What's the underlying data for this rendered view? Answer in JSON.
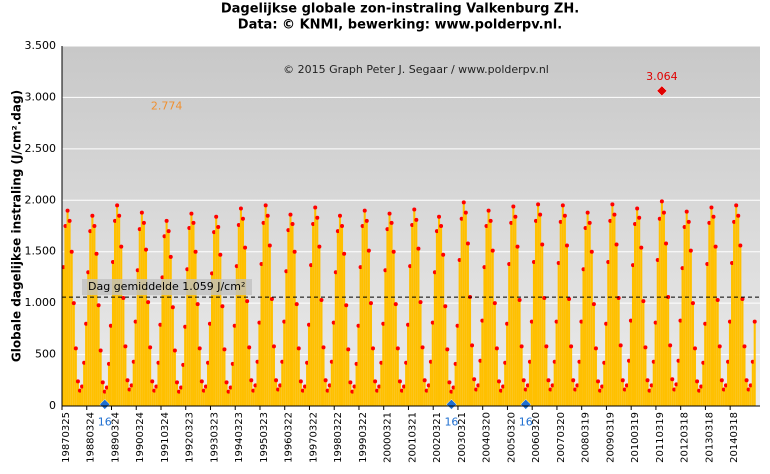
{
  "chart_data": {
    "type": "bar",
    "title": "Dagelijkse globale zon-instraling Valkenburg ZH.",
    "subtitle": "Data: © KNMI, bewerking: www.polderpv.nl.",
    "copyright": "© 2015 Graph Peter J. Segaar / www.polderpv.nl",
    "y_label": "Globale dagelijkse instraling (J/cm².dag)",
    "color": "#ffc000",
    "marker_color": "#ff0000",
    "grid": true,
    "xlim": [
      "19870325",
      "20150601"
    ],
    "xticks": [
      "19870325",
      "19880324",
      "19890324",
      "19900324",
      "19910324",
      "19920323",
      "19930323",
      "19940323",
      "19950323",
      "19960322",
      "19970322",
      "19980322",
      "19990322",
      "20000321",
      "20010321",
      "20020321",
      "20030321",
      "20040320",
      "20050320",
      "20060320",
      "20070320",
      "20080319",
      "20090319",
      "20100319",
      "20110319",
      "20120318",
      "20130318",
      "20140318"
    ],
    "ylim": [
      0,
      3500
    ],
    "yticks": [
      0,
      500,
      {
        "value": 1000,
        "label": "1.000"
      },
      {
        "value": 1500,
        "label": "1.500"
      },
      {
        "value": 2000,
        "label": "2.000"
      },
      {
        "value": 2500,
        "label": "2.500"
      },
      {
        "value": 3000,
        "label": "3.000"
      },
      {
        "value": 3500,
        "label": "3.500"
      }
    ],
    "mean_line": {
      "value": 1059,
      "label": "Dag gemiddelde 1.059 J/cm²"
    },
    "annotations": [
      {
        "x": "20110615",
        "value": 3064,
        "label": "3.064",
        "color": "#e00000",
        "marker": "diamond"
      },
      {
        "x": "19910615",
        "value": 2774,
        "label": "2.774",
        "color": "#f09030",
        "marker": "none"
      },
      {
        "x": "19881215",
        "value": 16,
        "label": "16",
        "color": "#1f6fd0",
        "marker": "diamond"
      },
      {
        "x": "20021215",
        "value": 16,
        "label": "16",
        "color": "#1f6fd0",
        "marker": "diamond"
      },
      {
        "x": "20051215",
        "value": 16,
        "label": "16",
        "color": "#1f6fd0",
        "marker": "diamond"
      }
    ],
    "x": [
      "19870415",
      "19870515",
      "19870615",
      "19870715",
      "19870815",
      "19870915",
      "19871015",
      "19871115",
      "19871215",
      "19880115",
      "19880215",
      "19880315",
      "19880415",
      "19880515",
      "19880615",
      "19880715",
      "19880815",
      "19880915",
      "19881015",
      "19881115",
      "19881215",
      "19890115",
      "19890215",
      "19890315",
      "19890415",
      "19890515",
      "19890615",
      "19890715",
      "19890815",
      "19890915",
      "19891015",
      "19891115",
      "19891215",
      "19900115",
      "19900215",
      "19900315",
      "19900415",
      "19900515",
      "19900615",
      "19900715",
      "19900815",
      "19900915",
      "19901015",
      "19901115",
      "19901215",
      "19910115",
      "19910215",
      "19910315",
      "19910415",
      "19910515",
      "19910615",
      "19910715",
      "19910815",
      "19910915",
      "19911015",
      "19911115",
      "19911215",
      "19920115",
      "19920215",
      "19920315",
      "19920415",
      "19920515",
      "19920615",
      "19920715",
      "19920815",
      "19920915",
      "19921015",
      "19921115",
      "19921215",
      "19930115",
      "19930215",
      "19930315",
      "19930415",
      "19930515",
      "19930615",
      "19930715",
      "19930815",
      "19930915",
      "19931015",
      "19931115",
      "19931215",
      "19940115",
      "19940215",
      "19940315",
      "19940415",
      "19940515",
      "19940615",
      "19940715",
      "19940815",
      "19940915",
      "19941015",
      "19941115",
      "19941215",
      "19950115",
      "19950215",
      "19950315",
      "19950415",
      "19950515",
      "19950615",
      "19950715",
      "19950815",
      "19950915",
      "19951015",
      "19951115",
      "19951215",
      "19960115",
      "19960215",
      "19960315",
      "19960415",
      "19960515",
      "19960615",
      "19960715",
      "19960815",
      "19960915",
      "19961015",
      "19961115",
      "19961215",
      "19970115",
      "19970215",
      "19970315",
      "19970415",
      "19970515",
      "19970615",
      "19970715",
      "19970815",
      "19970915",
      "19971015",
      "19971115",
      "19971215",
      "19980115",
      "19980215",
      "19980315",
      "19980415",
      "19980515",
      "19980615",
      "19980715",
      "19980815",
      "19980915",
      "19981015",
      "19981115",
      "19981215",
      "19990115",
      "19990215",
      "19990315",
      "19990415",
      "19990515",
      "19990615",
      "19990715",
      "19990815",
      "19990915",
      "19991015",
      "19991115",
      "19991215",
      "20000115",
      "20000215",
      "20000315",
      "20000415",
      "20000515",
      "20000615",
      "20000715",
      "20000815",
      "20000915",
      "20001015",
      "20001115",
      "20001215",
      "20010115",
      "20010215",
      "20010315",
      "20010415",
      "20010515",
      "20010615",
      "20010715",
      "20010815",
      "20010915",
      "20011015",
      "20011115",
      "20011215",
      "20020115",
      "20020215",
      "20020315",
      "20020415",
      "20020515",
      "20020615",
      "20020715",
      "20020815",
      "20020915",
      "20021015",
      "20021115",
      "20021215",
      "20030115",
      "20030215",
      "20030315",
      "20030415",
      "20030515",
      "20030615",
      "20030715",
      "20030815",
      "20030915",
      "20031015",
      "20031115",
      "20031215",
      "20040115",
      "20040215",
      "20040315",
      "20040415",
      "20040515",
      "20040615",
      "20040715",
      "20040815",
      "20040915",
      "20041015",
      "20041115",
      "20041215",
      "20050115",
      "20050215",
      "20050315",
      "20050415",
      "20050515",
      "20050615",
      "20050715",
      "20050815",
      "20050915",
      "20051015",
      "20051115",
      "20051215",
      "20060115",
      "20060215",
      "20060315",
      "20060415",
      "20060515",
      "20060615",
      "20060715",
      "20060815",
      "20060915",
      "20061015",
      "20061115",
      "20061215",
      "20070115",
      "20070215",
      "20070315",
      "20070415",
      "20070515",
      "20070615",
      "20070715",
      "20070815",
      "20070915",
      "20071015",
      "20071115",
      "20071215",
      "20080115",
      "20080215",
      "20080315",
      "20080415",
      "20080515",
      "20080615",
      "20080715",
      "20080815",
      "20080915",
      "20081015",
      "20081115",
      "20081215",
      "20090115",
      "20090215",
      "20090315",
      "20090415",
      "20090515",
      "20090615",
      "20090715",
      "20090815",
      "20090915",
      "20091015",
      "20091115",
      "20091215",
      "20100115",
      "20100215",
      "20100315",
      "20100415",
      "20100515",
      "20100615",
      "20100715",
      "20100815",
      "20100915",
      "20101015",
      "20101115",
      "20101215",
      "20110115",
      "20110215",
      "20110315",
      "20110415",
      "20110515",
      "20110615",
      "20110715",
      "20110815",
      "20110915",
      "20111015",
      "20111115",
      "20111215",
      "20120115",
      "20120215",
      "20120315",
      "20120415",
      "20120515",
      "20120615",
      "20120715",
      "20120815",
      "20120915",
      "20121015",
      "20121115",
      "20121215",
      "20130115",
      "20130215",
      "20130315",
      "20130415",
      "20130515",
      "20130615",
      "20130715",
      "20130815",
      "20130915",
      "20131015",
      "20131115",
      "20131215",
      "20140115",
      "20140215",
      "20140315",
      "20140415",
      "20140515",
      "20140615",
      "20140715",
      "20140815",
      "20140915",
      "20141015",
      "20141115",
      "20141215",
      "20150115",
      "20150215",
      "20150315"
    ],
    "values": [
      1350,
      1750,
      1900,
      1800,
      1500,
      1000,
      560,
      240,
      150,
      190,
      420,
      800,
      1300,
      1700,
      1850,
      1750,
      1480,
      980,
      540,
      230,
      140,
      180,
      410,
      780,
      1400,
      1800,
      1950,
      1850,
      1550,
      1050,
      580,
      250,
      160,
      200,
      430,
      820,
      1320,
      1720,
      1880,
      1780,
      1520,
      1010,
      570,
      240,
      150,
      190,
      420,
      790,
      1250,
      1650,
      1800,
      1700,
      1450,
      960,
      540,
      230,
      140,
      180,
      400,
      770,
      1330,
      1730,
      1870,
      1780,
      1500,
      990,
      560,
      240,
      150,
      190,
      420,
      800,
      1290,
      1690,
      1840,
      1740,
      1470,
      970,
      550,
      230,
      140,
      180,
      410,
      780,
      1360,
      1760,
      1920,
      1820,
      1540,
      1020,
      570,
      250,
      150,
      200,
      430,
      810,
      1380,
      1780,
      1950,
      1850,
      1560,
      1040,
      580,
      250,
      160,
      200,
      430,
      820,
      1310,
      1710,
      1860,
      1770,
      1500,
      990,
      560,
      240,
      150,
      190,
      420,
      790,
      1370,
      1770,
      1930,
      1830,
      1550,
      1030,
      570,
      250,
      150,
      200,
      430,
      810,
      1300,
      1700,
      1850,
      1750,
      1480,
      980,
      550,
      230,
      140,
      190,
      410,
      780,
      1350,
      1750,
      1900,
      1800,
      1510,
      1000,
      560,
      240,
      150,
      190,
      420,
      800,
      1320,
      1720,
      1870,
      1780,
      1500,
      990,
      560,
      240,
      150,
      190,
      420,
      790,
      1360,
      1760,
      1910,
      1810,
      1530,
      1010,
      570,
      250,
      150,
      200,
      430,
      810,
      1300,
      1700,
      1840,
      1750,
      1470,
      970,
      550,
      230,
      140,
      180,
      410,
      780,
      1420,
      1820,
      1980,
      1880,
      1580,
      1060,
      590,
      260,
      160,
      200,
      440,
      830,
      1350,
      1750,
      1900,
      1800,
      1510,
      1000,
      560,
      240,
      150,
      190,
      420,
      800,
      1380,
      1780,
      1940,
      1840,
      1550,
      1030,
      580,
      250,
      160,
      200,
      430,
      820,
      1400,
      1800,
      1960,
      1860,
      1570,
      1050,
      580,
      250,
      160,
      200,
      430,
      820,
      1390,
      1790,
      1950,
      1850,
      1560,
      1040,
      580,
      250,
      160,
      200,
      430,
      820,
      1330,
      1730,
      1880,
      1780,
      1500,
      990,
      560,
      240,
      150,
      190,
      420,
      800,
      1400,
      1800,
      1960,
      1860,
      1570,
      1050,
      590,
      250,
      160,
      200,
      440,
      830,
      1370,
      1770,
      1920,
      1830,
      1540,
      1020,
      570,
      250,
      150,
      200,
      430,
      810,
      1420,
      1820,
      1990,
      1880,
      1580,
      1060,
      590,
      260,
      160,
      210,
      440,
      830,
      1340,
      1740,
      1890,
      1790,
      1510,
      1000,
      560,
      240,
      150,
      190,
      420,
      800,
      1380,
      1780,
      1930,
      1840,
      1550,
      1030,
      580,
      250,
      160,
      200,
      430,
      820,
      1390,
      1790,
      1950,
      1850,
      1560,
      1040,
      580,
      250,
      160,
      200,
      430,
      820
    ]
  }
}
